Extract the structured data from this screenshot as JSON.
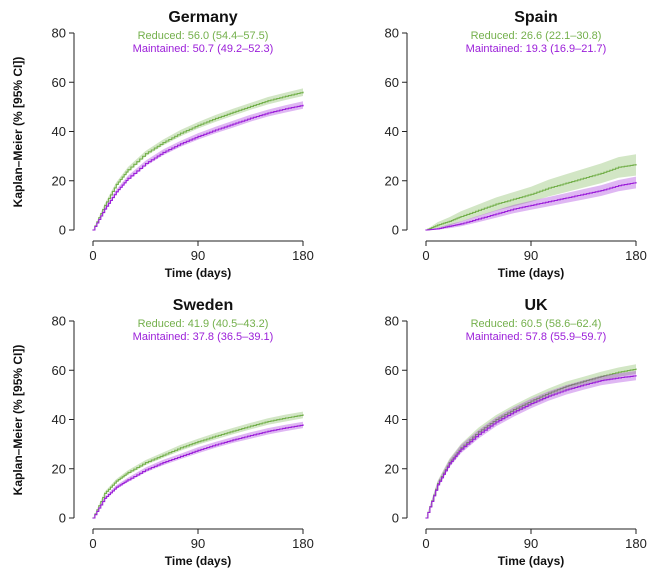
{
  "ylabel": "Kaplan–Meier (% [95% CI])",
  "chart_data": [
    {
      "type": "line",
      "title": "Germany",
      "xlabel": "Time (days)",
      "xlim": [
        0,
        180
      ],
      "ylim": [
        0,
        80
      ],
      "xticks": [
        0,
        90,
        180
      ],
      "yticks": [
        0,
        20,
        40,
        60,
        80
      ],
      "legend_placement": "top-center",
      "series": [
        {
          "name": "Reduced",
          "legend_label": "Reduced: 56.0 (54.4–57.5)",
          "color": "#74b04c",
          "x": [
            0,
            10,
            20,
            30,
            45,
            60,
            75,
            90,
            105,
            120,
            135,
            150,
            165,
            180
          ],
          "y": [
            0,
            10,
            18.5,
            24.5,
            31,
            35.5,
            39.3,
            42.5,
            45.3,
            47.8,
            50.2,
            52.5,
            54.3,
            56.0
          ],
          "ci_lower": [
            0,
            9.3,
            17.6,
            23.4,
            29.9,
            34.3,
            38.0,
            41.2,
            43.9,
            46.4,
            48.8,
            51.0,
            52.8,
            54.4
          ],
          "ci_upper": [
            0,
            10.7,
            19.4,
            25.6,
            32.1,
            36.7,
            40.6,
            43.8,
            46.7,
            49.2,
            51.6,
            54.0,
            55.8,
            57.5
          ]
        },
        {
          "name": "Maintained",
          "legend_label": "Maintained: 50.7 (49.2–52.3)",
          "color": "#9b1ed9",
          "x": [
            0,
            10,
            20,
            30,
            45,
            60,
            75,
            90,
            105,
            120,
            135,
            150,
            165,
            180
          ],
          "y": [
            0,
            8.5,
            15.5,
            21,
            27,
            31.5,
            35,
            38,
            40.6,
            43,
            45.4,
            47.5,
            49.2,
            50.7
          ],
          "ci_lower": [
            0,
            7.8,
            14.6,
            20.0,
            25.9,
            30.3,
            33.8,
            36.7,
            39.3,
            41.6,
            44.0,
            46.1,
            47.7,
            49.2
          ],
          "ci_upper": [
            0,
            9.2,
            16.4,
            22.0,
            28.1,
            32.7,
            36.2,
            39.3,
            41.9,
            44.4,
            46.8,
            48.9,
            50.7,
            52.3
          ]
        }
      ]
    },
    {
      "type": "line",
      "title": "Spain",
      "xlabel": "Time (days)",
      "xlim": [
        0,
        180
      ],
      "ylim": [
        0,
        80
      ],
      "xticks": [
        0,
        90,
        180
      ],
      "yticks": [
        0,
        20,
        40,
        60,
        80
      ],
      "legend_placement": "top-center",
      "series": [
        {
          "name": "Reduced",
          "legend_label": "Reduced: 26.6 (22.1–30.8)",
          "color": "#74b04c",
          "x": [
            0,
            10,
            20,
            30,
            45,
            60,
            75,
            90,
            105,
            120,
            135,
            150,
            165,
            180
          ],
          "y": [
            0,
            2,
            3.5,
            5.5,
            8,
            10.5,
            12.5,
            14.5,
            17,
            19,
            21,
            23,
            25.5,
            26.6
          ],
          "ci_lower": [
            0,
            0.8,
            1.8,
            3.4,
            5.6,
            7.8,
            9.6,
            11.4,
            13.6,
            15.4,
            17.2,
            19,
            21.2,
            22.1
          ],
          "ci_upper": [
            0,
            3.2,
            5.2,
            7.6,
            10.4,
            13.2,
            15.4,
            17.6,
            20.4,
            22.6,
            24.8,
            27,
            29.6,
            30.8
          ]
        },
        {
          "name": "Maintained",
          "legend_label": "Maintained: 19.3 (16.9–21.7)",
          "color": "#9b1ed9",
          "x": [
            0,
            10,
            20,
            30,
            45,
            60,
            75,
            90,
            105,
            120,
            135,
            150,
            165,
            180
          ],
          "y": [
            0,
            0.5,
            1.5,
            2.5,
            4.5,
            6.5,
            8.5,
            10,
            11.5,
            13,
            14.5,
            16,
            18,
            19.3
          ],
          "ci_lower": [
            0,
            0.1,
            0.7,
            1.5,
            3.2,
            5.0,
            6.8,
            8.2,
            9.6,
            11,
            12.4,
            13.8,
            15.7,
            16.9
          ],
          "ci_upper": [
            0,
            0.9,
            2.3,
            3.5,
            5.8,
            8.0,
            10.2,
            11.8,
            13.4,
            15,
            16.6,
            18.2,
            20.3,
            21.7
          ]
        }
      ]
    },
    {
      "type": "line",
      "title": "Sweden",
      "xlabel": "Time (days)",
      "xlim": [
        0,
        180
      ],
      "ylim": [
        0,
        80
      ],
      "xticks": [
        0,
        90,
        180
      ],
      "yticks": [
        0,
        20,
        40,
        60,
        80
      ],
      "legend_placement": "top-center",
      "series": [
        {
          "name": "Reduced",
          "legend_label": "Reduced: 41.9 (40.5–43.2)",
          "color": "#74b04c",
          "x": [
            0,
            10,
            20,
            30,
            45,
            60,
            75,
            90,
            105,
            120,
            135,
            150,
            165,
            180
          ],
          "y": [
            0,
            10,
            15,
            18.5,
            22.5,
            25.5,
            28.5,
            31,
            33.2,
            35.3,
            37.3,
            39.2,
            40.6,
            41.9
          ],
          "ci_lower": [
            0,
            9.3,
            14.2,
            17.6,
            21.5,
            24.4,
            27.3,
            29.8,
            31.9,
            34,
            36,
            37.9,
            39.2,
            40.5
          ],
          "ci_upper": [
            0,
            10.7,
            15.8,
            19.4,
            23.5,
            26.6,
            29.7,
            32.2,
            34.5,
            36.6,
            38.6,
            40.5,
            42,
            43.2
          ]
        },
        {
          "name": "Maintained",
          "legend_label": "Maintained: 37.8 (36.5–39.1)",
          "color": "#9b1ed9",
          "x": [
            0,
            10,
            20,
            30,
            45,
            60,
            75,
            90,
            105,
            120,
            135,
            150,
            165,
            180
          ],
          "y": [
            0,
            8,
            12.5,
            15.5,
            19.5,
            22.5,
            25,
            27.5,
            29.7,
            31.7,
            33.5,
            35.2,
            36.6,
            37.8
          ],
          "ci_lower": [
            0,
            7.3,
            11.7,
            14.6,
            18.5,
            21.4,
            23.9,
            26.3,
            28.5,
            30.5,
            32.2,
            33.9,
            35.3,
            36.5
          ],
          "ci_upper": [
            0,
            8.7,
            13.3,
            16.4,
            20.5,
            23.6,
            26.1,
            28.7,
            30.9,
            32.9,
            34.8,
            36.5,
            37.9,
            39.1
          ]
        }
      ]
    },
    {
      "type": "line",
      "title": "UK",
      "xlabel": "Time (days)",
      "xlim": [
        0,
        180
      ],
      "ylim": [
        0,
        80
      ],
      "xticks": [
        0,
        90,
        180
      ],
      "yticks": [
        0,
        20,
        40,
        60,
        80
      ],
      "legend_placement": "top-center",
      "series": [
        {
          "name": "Reduced",
          "legend_label": "Reduced: 60.5 (58.6–62.4)",
          "color": "#74b04c",
          "x": [
            0,
            10,
            20,
            30,
            45,
            60,
            75,
            90,
            105,
            120,
            135,
            150,
            165,
            180
          ],
          "y": [
            0,
            14,
            22.5,
            28.5,
            35,
            40,
            44,
            47.5,
            50.7,
            53.5,
            55.5,
            57.5,
            59.2,
            60.5
          ],
          "ci_lower": [
            0,
            12.8,
            21.0,
            26.9,
            33.3,
            38.2,
            42.2,
            45.6,
            48.8,
            51.6,
            53.6,
            55.6,
            57.3,
            58.6
          ],
          "ci_upper": [
            0,
            15.2,
            24.0,
            30.1,
            36.7,
            41.8,
            45.8,
            49.4,
            52.6,
            55.4,
            57.4,
            59.4,
            61.1,
            62.4
          ]
        },
        {
          "name": "Maintained",
          "legend_label": "Maintained: 57.8 (55.9–59.7)",
          "color": "#9b1ed9",
          "x": [
            0,
            10,
            20,
            30,
            45,
            60,
            75,
            90,
            105,
            120,
            135,
            150,
            165,
            180
          ],
          "y": [
            0,
            13.5,
            22,
            28,
            34,
            39,
            43,
            46.5,
            49.5,
            52,
            54,
            55.8,
            56.9,
            57.8
          ],
          "ci_lower": [
            0,
            12.3,
            20.5,
            26.3,
            32.3,
            37.2,
            41.1,
            44.6,
            47.6,
            50.1,
            52.1,
            53.9,
            55.0,
            55.9
          ],
          "ci_upper": [
            0,
            14.7,
            23.5,
            29.7,
            35.7,
            40.8,
            44.9,
            48.4,
            51.4,
            53.9,
            55.9,
            57.7,
            58.8,
            59.7
          ]
        }
      ]
    }
  ]
}
